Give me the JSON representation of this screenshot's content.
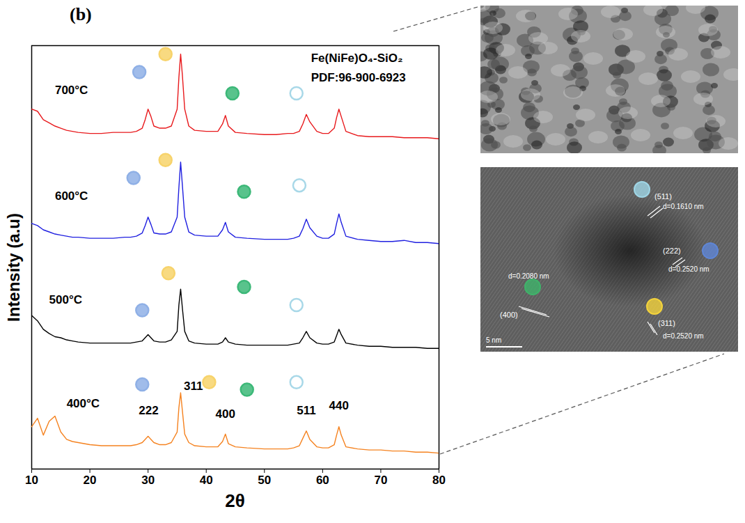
{
  "chart_data": {
    "type": "line",
    "panel_label": "(b)",
    "xlabel": "2θ",
    "ylabel": "Intensity (a.u)",
    "xlim": [
      10,
      80
    ],
    "xticks": [
      10,
      20,
      30,
      40,
      50,
      60,
      70,
      80
    ],
    "ylim": [
      0,
      100
    ],
    "yticks": [],
    "tick_labels": "x",
    "grid": false,
    "x": [
      10,
      11,
      12,
      13,
      14,
      15,
      16,
      17,
      18,
      20,
      22,
      24,
      26,
      27,
      28,
      29,
      29.5,
      30,
      30.5,
      31,
      32,
      33,
      34,
      35,
      35.3,
      35.6,
      35.9,
      36.3,
      37,
      38,
      40,
      42,
      42.8,
      43.3,
      43.8,
      45,
      47,
      50,
      52,
      54,
      55,
      56,
      56.6,
      57.2,
      57.8,
      59,
      60,
      61,
      62,
      62.4,
      62.8,
      63.2,
      64,
      66,
      68,
      70,
      72,
      74,
      76,
      78,
      80
    ],
    "series": [
      {
        "name": "700°C",
        "color": "#e8191c",
        "label_x": 14,
        "label_y": 58,
        "values": [
          40,
          38,
          30,
          27,
          24,
          22,
          20,
          19,
          18,
          17,
          17,
          18,
          18,
          18,
          19,
          22,
          30,
          40,
          33,
          24,
          22,
          22,
          24,
          40,
          70,
          92,
          72,
          40,
          24,
          20,
          19,
          19,
          26,
          34,
          24,
          18,
          17,
          16,
          16,
          17,
          17,
          19,
          26,
          35,
          28,
          19,
          17,
          17,
          22,
          32,
          40,
          33,
          19,
          15,
          14,
          14,
          14,
          13,
          13,
          13,
          12
        ]
      },
      {
        "name": "600°C",
        "color": "#1f1fe0",
        "label_x": 14,
        "label_y": 58,
        "values": [
          32,
          30,
          26,
          24,
          22,
          21,
          20,
          19,
          19,
          18,
          18,
          18,
          19,
          19,
          20,
          23,
          30,
          38,
          31,
          23,
          22,
          22,
          24,
          38,
          66,
          90,
          68,
          38,
          24,
          21,
          20,
          20,
          26,
          33,
          24,
          19,
          18,
          17,
          17,
          17,
          18,
          20,
          27,
          36,
          28,
          20,
          18,
          18,
          22,
          32,
          41,
          33,
          20,
          17,
          16,
          15,
          15,
          16,
          14,
          14,
          13
        ]
      },
      {
        "name": "500°C",
        "color": "#000000",
        "label_x": 13,
        "label_y": 60,
        "values": [
          45,
          40,
          32,
          28,
          25,
          24,
          22,
          21,
          20,
          19,
          19,
          19,
          19,
          19,
          20,
          21,
          24,
          27,
          24,
          21,
          20,
          20,
          22,
          30,
          55,
          70,
          52,
          30,
          21,
          19,
          18,
          18,
          20,
          24,
          20,
          18,
          17,
          17,
          17,
          17,
          18,
          19,
          24,
          30,
          24,
          19,
          18,
          18,
          20,
          26,
          32,
          27,
          19,
          17,
          16,
          16,
          15,
          15,
          15,
          14,
          14
        ]
      },
      {
        "name": "400°C",
        "color": "#f5821f",
        "label_x": 16,
        "label_y": 62,
        "values": [
          40,
          48,
          32,
          45,
          50,
          35,
          28,
          26,
          25,
          23,
          22,
          22,
          22,
          22,
          23,
          25,
          28,
          31,
          28,
          25,
          23,
          23,
          25,
          35,
          58,
          72,
          55,
          33,
          25,
          22,
          21,
          21,
          26,
          33,
          24,
          21,
          20,
          19,
          19,
          19,
          20,
          22,
          29,
          36,
          28,
          21,
          20,
          20,
          23,
          32,
          40,
          32,
          21,
          19,
          18,
          18,
          17,
          17,
          16,
          16,
          15
        ]
      }
    ],
    "annotations": [
      {
        "text": "Fe(NiFe)O₄-SiO₂",
        "series": "700°C",
        "x": 58,
        "y": 88
      },
      {
        "text": "PDF:96-900-6923",
        "series": "700°C",
        "x": 58,
        "y": 70
      }
    ],
    "peak_labels": [
      {
        "text": "222",
        "series": "400°C",
        "x": 30.1,
        "y": 55
      },
      {
        "text": "311",
        "series": "400°C",
        "x": 37.8,
        "y": 78
      },
      {
        "text": "400",
        "series": "400°C",
        "x": 43.3,
        "y": 52
      },
      {
        "text": "511",
        "series": "400°C",
        "x": 57.2,
        "y": 55
      },
      {
        "text": "440",
        "series": "400°C",
        "x": 62.8,
        "y": 60
      }
    ],
    "peak_markers": [
      {
        "series": "700°C",
        "x": 28.5,
        "y": 75,
        "color": "#8fb0e6",
        "marker": "circle"
      },
      {
        "series": "700°C",
        "x": 33,
        "y": 92,
        "color": "#f7d36b",
        "marker": "circle"
      },
      {
        "series": "700°C",
        "x": 44.5,
        "y": 55,
        "color": "#3cb878",
        "marker": "circle"
      },
      {
        "series": "700°C",
        "x": 55.5,
        "y": 55,
        "color": "#a8d8e8",
        "marker": "open"
      },
      {
        "series": "600°C",
        "x": 27.5,
        "y": 75,
        "color": "#8fb0e6",
        "marker": "circle"
      },
      {
        "series": "600°C",
        "x": 33,
        "y": 92,
        "color": "#f7d36b",
        "marker": "circle"
      },
      {
        "series": "600°C",
        "x": 46.5,
        "y": 62,
        "color": "#3cb878",
        "marker": "circle"
      },
      {
        "series": "600°C",
        "x": 56,
        "y": 68,
        "color": "#a8d8e8",
        "marker": "open"
      },
      {
        "series": "500°C",
        "x": 29,
        "y": 50,
        "color": "#8fb0e6",
        "marker": "circle"
      },
      {
        "series": "500°C",
        "x": 33.5,
        "y": 85,
        "color": "#f7d36b",
        "marker": "circle"
      },
      {
        "series": "500°C",
        "x": 46.5,
        "y": 72,
        "color": "#3cb878",
        "marker": "circle"
      },
      {
        "series": "500°C",
        "x": 55.5,
        "y": 55,
        "color": "#a8d8e8",
        "marker": "open"
      },
      {
        "series": "400°C",
        "x": 29,
        "y": 80,
        "color": "#8fb0e6",
        "marker": "circle"
      },
      {
        "series": "400°C",
        "x": 40.5,
        "y": 82,
        "color": "#f7d36b",
        "marker": "circle"
      },
      {
        "series": "400°C",
        "x": 47,
        "y": 75,
        "color": "#3cb878",
        "marker": "circle"
      },
      {
        "series": "400°C",
        "x": 55.5,
        "y": 82,
        "color": "#a8d8e8",
        "marker": "open"
      }
    ]
  },
  "insets": {
    "hrtem_labels": [
      {
        "plane": "(511)",
        "d": "d=0.1610 nm",
        "color": "#9fd6e6"
      },
      {
        "plane": "(222)",
        "d": "d=0.2520 nm",
        "color": "#5f86d6"
      },
      {
        "plane": "(400)",
        "d": "d=0.2080 nm",
        "color": "#3fb36a"
      },
      {
        "plane": "(311)",
        "d": "d=0.2520 nm",
        "color": "#f2d23c"
      }
    ],
    "scale_bar": "5 nm"
  }
}
